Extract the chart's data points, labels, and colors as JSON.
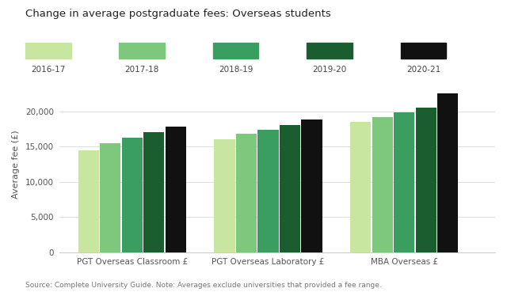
{
  "title": "Change in average postgraduate fees: Overseas students",
  "ylabel": "Average fee (£)",
  "footnote": "Source: Complete University Guide. Note: Averages exclude universities that provided a fee range.",
  "categories": [
    "PGT Overseas Classroom £",
    "PGT Overseas Laboratory £",
    "MBA Overseas £"
  ],
  "years": [
    "2016-17",
    "2017-18",
    "2018-19",
    "2019-20",
    "2020-21"
  ],
  "colors": [
    "#c8e6a0",
    "#7ec87e",
    "#3a9e60",
    "#1a5e30",
    "#111111"
  ],
  "values": [
    [
      14500,
      15500,
      16200,
      17000,
      17800
    ],
    [
      16000,
      16800,
      17400,
      18000,
      18800
    ],
    [
      18500,
      19200,
      19800,
      20500,
      22500
    ]
  ],
  "ylim": [
    0,
    25000
  ],
  "yticks": [
    0,
    5000,
    10000,
    15000,
    20000
  ],
  "ytick_labels": [
    "0",
    "5,000",
    "10,000",
    "15,000",
    "20,000"
  ],
  "background_color": "#ffffff",
  "grid_color": "#e0e0e0",
  "bar_width": 0.12
}
